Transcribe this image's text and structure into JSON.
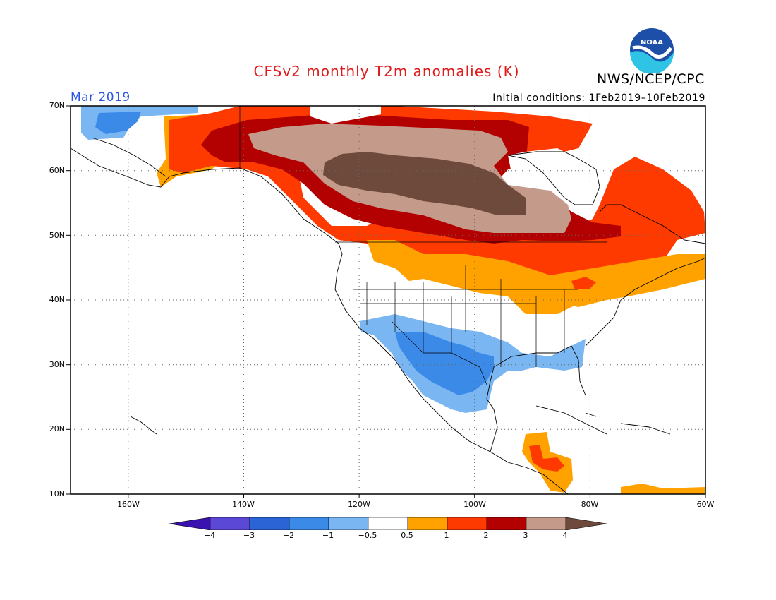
{
  "title": "CFSv2 monthly T2m anomalies (K)",
  "agency": "NWS/NCEP/CPC",
  "logo_text": "NOAA",
  "forecast_month": "Mar 2019",
  "initial_conditions": "Initial conditions: 1Feb2019–10Feb2019",
  "map": {
    "lat_labels": [
      "70N",
      "60N",
      "50N",
      "40N",
      "30N",
      "20N",
      "10N"
    ],
    "lon_labels": [
      "160W",
      "140W",
      "120W",
      "100W",
      "80W",
      "60W"
    ]
  },
  "colorbar": {
    "tick_labels": [
      "−4",
      "−3",
      "−2",
      "−1",
      "−0.5",
      "0.5",
      "1",
      "2",
      "3",
      "4"
    ],
    "colors": [
      "#3a12b0",
      "#5b48d6",
      "#2b64d4",
      "#3c8ae8",
      "#7ab7f2",
      "#ffffff",
      "#ffa200",
      "#ff3a00",
      "#b30000",
      "#c49a8a",
      "#6e4a3d"
    ]
  }
}
